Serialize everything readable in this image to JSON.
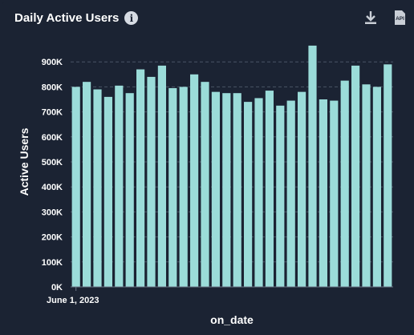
{
  "header": {
    "title": "Daily Active Users",
    "info_icon": "info-icon",
    "download_icon": "download-icon",
    "api_icon": "api-icon",
    "api_icon_label": "API"
  },
  "colors": {
    "background": "#1b2333",
    "bar": "#9bdcd9",
    "grid": "#4a5466",
    "text": "#ffffff"
  },
  "chart_data": {
    "type": "bar",
    "title": "Daily Active Users",
    "xlabel": "on_date",
    "ylabel": "Active Users",
    "x_tick_labels": [
      "June 1, 2023"
    ],
    "y_tick_labels": [
      "0K",
      "100K",
      "200K",
      "300K",
      "400K",
      "500K",
      "600K",
      "700K",
      "800K",
      "900K"
    ],
    "ylim": [
      0,
      1000000
    ],
    "grid": "horizontal dashed",
    "values": [
      800000,
      820000,
      790000,
      760000,
      805000,
      775000,
      870000,
      840000,
      885000,
      795000,
      800000,
      850000,
      820000,
      780000,
      775000,
      775000,
      740000,
      755000,
      785000,
      725000,
      745000,
      780000,
      965000,
      750000,
      745000,
      825000,
      885000,
      810000,
      800000,
      890000
    ]
  }
}
